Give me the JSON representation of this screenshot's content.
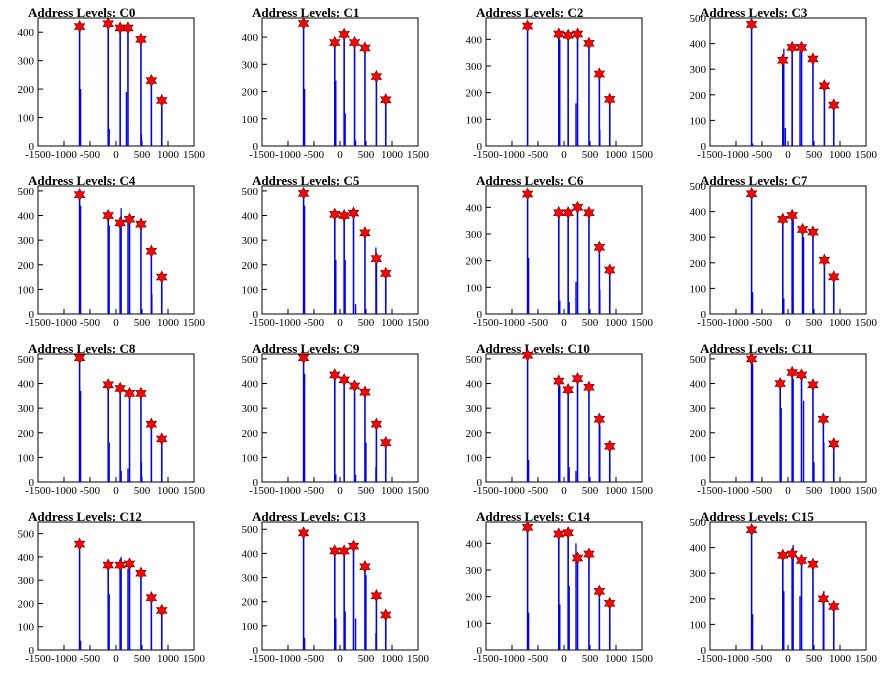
{
  "xticks": [
    -1500,
    -1000,
    -500,
    0,
    500,
    1000,
    1500
  ],
  "xtick_labels": [
    "-1500",
    "-1000",
    "-500",
    "0",
    "500",
    "1000",
    "1500"
  ],
  "colors": {
    "peak_line": "#0000ff",
    "marker_fill": "#ff0000",
    "marker_edge": "#660000",
    "axis": "#000000"
  },
  "chart_data": [
    {
      "type": "bar",
      "title": "Address Levels: C0",
      "xlim": [
        -1500,
        1500
      ],
      "ylim": [
        0,
        450
      ],
      "yticks": [
        0,
        100,
        200,
        300,
        400
      ],
      "ytick_labels": [
        "0",
        "100",
        "200",
        "300",
        "400"
      ],
      "peaks": [
        {
          "x": -700,
          "y": 420
        },
        {
          "x": -150,
          "y": 430
        },
        {
          "x": 80,
          "y": 415
        },
        {
          "x": 230,
          "y": 415
        },
        {
          "x": 480,
          "y": 375
        },
        {
          "x": 680,
          "y": 230
        },
        {
          "x": 880,
          "y": 160
        }
      ],
      "minor_bars": [
        {
          "x": -680,
          "y": 200
        },
        {
          "x": -130,
          "y": 60
        },
        {
          "x": 200,
          "y": 190
        },
        {
          "x": 490,
          "y": 40
        }
      ]
    },
    {
      "type": "bar",
      "title": "Address Levels: C1",
      "xlim": [
        -1500,
        1500
      ],
      "ylim": [
        0,
        470
      ],
      "yticks": [
        0,
        100,
        200,
        300,
        400
      ],
      "ytick_labels": [
        "0",
        "100",
        "200",
        "300",
        "400"
      ],
      "peaks": [
        {
          "x": -700,
          "y": 450
        },
        {
          "x": -100,
          "y": 380
        },
        {
          "x": 80,
          "y": 410
        },
        {
          "x": 280,
          "y": 380
        },
        {
          "x": 480,
          "y": 360
        },
        {
          "x": 700,
          "y": 255
        },
        {
          "x": 880,
          "y": 170
        }
      ],
      "minor_bars": [
        {
          "x": -680,
          "y": 210
        },
        {
          "x": -80,
          "y": 240
        },
        {
          "x": 100,
          "y": 120
        },
        {
          "x": 300,
          "y": 20
        }
      ]
    },
    {
      "type": "bar",
      "title": "Address Levels: C2",
      "xlim": [
        -1500,
        1500
      ],
      "ylim": [
        0,
        480
      ],
      "yticks": [
        0,
        100,
        200,
        300,
        400
      ],
      "ytick_labels": [
        "0",
        "100",
        "200",
        "300",
        "400"
      ],
      "peaks": [
        {
          "x": -700,
          "y": 450
        },
        {
          "x": -100,
          "y": 420
        },
        {
          "x": 80,
          "y": 415
        },
        {
          "x": 260,
          "y": 420
        },
        {
          "x": 480,
          "y": 385
        },
        {
          "x": 680,
          "y": 270
        },
        {
          "x": 880,
          "y": 175
        }
      ],
      "minor_bars": [
        {
          "x": -80,
          "y": 400
        },
        {
          "x": 230,
          "y": 160
        },
        {
          "x": 690,
          "y": 60
        }
      ]
    },
    {
      "type": "bar",
      "title": "Address Levels: C3",
      "xlim": [
        -1500,
        1500
      ],
      "ylim": [
        0,
        500
      ],
      "yticks": [
        0,
        100,
        200,
        300,
        400,
        500
      ],
      "ytick_labels": [
        "0",
        "100",
        "200",
        "300",
        "400",
        "500"
      ],
      "peaks": [
        {
          "x": -700,
          "y": 475
        },
        {
          "x": -100,
          "y": 335
        },
        {
          "x": 80,
          "y": 385
        },
        {
          "x": 260,
          "y": 385
        },
        {
          "x": 480,
          "y": 340
        },
        {
          "x": 700,
          "y": 235
        },
        {
          "x": 880,
          "y": 160
        }
      ],
      "minor_bars": [
        {
          "x": -680,
          "y": 10
        },
        {
          "x": -80,
          "y": 380
        },
        {
          "x": -50,
          "y": 70
        },
        {
          "x": 230,
          "y": 370
        }
      ]
    },
    {
      "type": "bar",
      "title": "Address Levels: C4",
      "xlim": [
        -1500,
        1500
      ],
      "ylim": [
        0,
        520
      ],
      "yticks": [
        0,
        100,
        200,
        300,
        400,
        500
      ],
      "ytick_labels": [
        "0",
        "100",
        "200",
        "300",
        "400",
        "500"
      ],
      "peaks": [
        {
          "x": -700,
          "y": 485
        },
        {
          "x": -150,
          "y": 400
        },
        {
          "x": 80,
          "y": 370
        },
        {
          "x": 260,
          "y": 385
        },
        {
          "x": 480,
          "y": 365
        },
        {
          "x": 680,
          "y": 255
        },
        {
          "x": 880,
          "y": 150
        }
      ],
      "minor_bars": [
        {
          "x": -680,
          "y": 440
        },
        {
          "x": -130,
          "y": 360
        },
        {
          "x": 100,
          "y": 430
        },
        {
          "x": 230,
          "y": 395
        },
        {
          "x": 690,
          "y": 80
        }
      ]
    },
    {
      "type": "bar",
      "title": "Address Levels: C5",
      "xlim": [
        -1500,
        1500
      ],
      "ylim": [
        0,
        520
      ],
      "yticks": [
        0,
        100,
        200,
        300,
        400,
        500
      ],
      "ytick_labels": [
        "0",
        "100",
        "200",
        "300",
        "400",
        "500"
      ],
      "peaks": [
        {
          "x": -700,
          "y": 490
        },
        {
          "x": -100,
          "y": 405
        },
        {
          "x": 80,
          "y": 400
        },
        {
          "x": 260,
          "y": 410
        },
        {
          "x": 480,
          "y": 330
        },
        {
          "x": 700,
          "y": 225
        },
        {
          "x": 880,
          "y": 165
        }
      ],
      "minor_bars": [
        {
          "x": -680,
          "y": 440
        },
        {
          "x": -80,
          "y": 220
        },
        {
          "x": 100,
          "y": 220
        },
        {
          "x": 300,
          "y": 40
        },
        {
          "x": 690,
          "y": 270
        }
      ]
    },
    {
      "type": "bar",
      "title": "Address Levels: C6",
      "xlim": [
        -1500,
        1500
      ],
      "ylim": [
        0,
        480
      ],
      "yticks": [
        0,
        100,
        200,
        300,
        400
      ],
      "ytick_labels": [
        "0",
        "100",
        "200",
        "300",
        "400"
      ],
      "peaks": [
        {
          "x": -700,
          "y": 450
        },
        {
          "x": -100,
          "y": 380
        },
        {
          "x": 80,
          "y": 380
        },
        {
          "x": 260,
          "y": 400
        },
        {
          "x": 480,
          "y": 380
        },
        {
          "x": 680,
          "y": 250
        },
        {
          "x": 880,
          "y": 165
        }
      ],
      "minor_bars": [
        {
          "x": -680,
          "y": 210
        },
        {
          "x": -80,
          "y": 50
        },
        {
          "x": 100,
          "y": 45
        },
        {
          "x": 230,
          "y": 120
        },
        {
          "x": 690,
          "y": 90
        }
      ]
    },
    {
      "type": "bar",
      "title": "Address Levels: C7",
      "xlim": [
        -1500,
        1500
      ],
      "ylim": [
        0,
        500
      ],
      "yticks": [
        0,
        100,
        200,
        300,
        400,
        500
      ],
      "ytick_labels": [
        "0",
        "100",
        "200",
        "300",
        "400",
        "500"
      ],
      "peaks": [
        {
          "x": -700,
          "y": 470
        },
        {
          "x": -100,
          "y": 370
        },
        {
          "x": 80,
          "y": 385
        },
        {
          "x": 280,
          "y": 330
        },
        {
          "x": 480,
          "y": 320
        },
        {
          "x": 700,
          "y": 210
        },
        {
          "x": 880,
          "y": 145
        }
      ],
      "minor_bars": [
        {
          "x": -680,
          "y": 85
        },
        {
          "x": -80,
          "y": 60
        },
        {
          "x": 100,
          "y": 370
        },
        {
          "x": 300,
          "y": 300
        }
      ]
    },
    {
      "type": "bar",
      "title": "Address Levels: C8",
      "xlim": [
        -1500,
        1500
      ],
      "ylim": [
        0,
        520
      ],
      "yticks": [
        0,
        100,
        200,
        300,
        400,
        500
      ],
      "ytick_labels": [
        "0",
        "100",
        "200",
        "300",
        "400",
        "500"
      ],
      "peaks": [
        {
          "x": -700,
          "y": 505
        },
        {
          "x": -150,
          "y": 395
        },
        {
          "x": 80,
          "y": 380
        },
        {
          "x": 260,
          "y": 360
        },
        {
          "x": 480,
          "y": 360
        },
        {
          "x": 680,
          "y": 235
        },
        {
          "x": 880,
          "y": 175
        }
      ],
      "minor_bars": [
        {
          "x": -680,
          "y": 370
        },
        {
          "x": -130,
          "y": 160
        },
        {
          "x": 100,
          "y": 45
        },
        {
          "x": 230,
          "y": 55
        },
        {
          "x": 490,
          "y": 80
        }
      ]
    },
    {
      "type": "bar",
      "title": "Address Levels: C9",
      "xlim": [
        -1500,
        1500
      ],
      "ylim": [
        0,
        520
      ],
      "yticks": [
        0,
        100,
        200,
        300,
        400,
        500
      ],
      "ytick_labels": [
        "0",
        "100",
        "200",
        "300",
        "400",
        "500"
      ],
      "peaks": [
        {
          "x": -700,
          "y": 505
        },
        {
          "x": -100,
          "y": 435
        },
        {
          "x": 80,
          "y": 415
        },
        {
          "x": 280,
          "y": 390
        },
        {
          "x": 480,
          "y": 365
        },
        {
          "x": 700,
          "y": 235
        },
        {
          "x": 880,
          "y": 160
        }
      ],
      "minor_bars": [
        {
          "x": -680,
          "y": 440
        },
        {
          "x": -80,
          "y": 30
        },
        {
          "x": 300,
          "y": 30
        },
        {
          "x": 500,
          "y": 160
        },
        {
          "x": 690,
          "y": 60
        }
      ]
    },
    {
      "type": "bar",
      "title": "Address Levels: C10",
      "xlim": [
        -1500,
        1500
      ],
      "ylim": [
        0,
        520
      ],
      "yticks": [
        0,
        100,
        200,
        300,
        400,
        500
      ],
      "ytick_labels": [
        "0",
        "100",
        "200",
        "300",
        "400",
        "500"
      ],
      "peaks": [
        {
          "x": -700,
          "y": 515
        },
        {
          "x": -100,
          "y": 410
        },
        {
          "x": 80,
          "y": 375
        },
        {
          "x": 260,
          "y": 420
        },
        {
          "x": 480,
          "y": 385
        },
        {
          "x": 680,
          "y": 255
        },
        {
          "x": 880,
          "y": 145
        }
      ],
      "minor_bars": [
        {
          "x": -680,
          "y": 90
        },
        {
          "x": -80,
          "y": 390
        },
        {
          "x": 100,
          "y": 60
        },
        {
          "x": 230,
          "y": 45
        },
        {
          "x": 690,
          "y": 230
        }
      ]
    },
    {
      "type": "bar",
      "title": "Address Levels: C11",
      "xlim": [
        -1500,
        1500
      ],
      "ylim": [
        0,
        520
      ],
      "yticks": [
        0,
        100,
        200,
        300,
        400,
        500
      ],
      "ytick_labels": [
        "0",
        "100",
        "200",
        "300",
        "400",
        "500"
      ],
      "peaks": [
        {
          "x": -700,
          "y": 500
        },
        {
          "x": -150,
          "y": 400
        },
        {
          "x": 80,
          "y": 445
        },
        {
          "x": 260,
          "y": 435
        },
        {
          "x": 480,
          "y": 395
        },
        {
          "x": 680,
          "y": 255
        },
        {
          "x": 880,
          "y": 155
        }
      ],
      "minor_bars": [
        {
          "x": -680,
          "y": 480
        },
        {
          "x": -130,
          "y": 300
        },
        {
          "x": 100,
          "y": 420
        },
        {
          "x": 300,
          "y": 330
        },
        {
          "x": 500,
          "y": 80
        },
        {
          "x": 690,
          "y": 160
        }
      ]
    },
    {
      "type": "bar",
      "title": "Address Levels: C12",
      "xlim": [
        -1500,
        1500
      ],
      "ylim": [
        0,
        550
      ],
      "yticks": [
        0,
        100,
        200,
        300,
        400,
        500
      ],
      "ytick_labels": [
        "0",
        "100",
        "200",
        "300",
        "400",
        "500"
      ],
      "peaks": [
        {
          "x": -700,
          "y": 455
        },
        {
          "x": -150,
          "y": 365
        },
        {
          "x": 80,
          "y": 365
        },
        {
          "x": 260,
          "y": 370
        },
        {
          "x": 480,
          "y": 330
        },
        {
          "x": 680,
          "y": 225
        },
        {
          "x": 880,
          "y": 170
        }
      ],
      "minor_bars": [
        {
          "x": -680,
          "y": 40
        },
        {
          "x": -130,
          "y": 240
        },
        {
          "x": 100,
          "y": 400
        },
        {
          "x": 230,
          "y": 350
        }
      ]
    },
    {
      "type": "bar",
      "title": "Address Levels: C13",
      "xlim": [
        -1500,
        1500
      ],
      "ylim": [
        0,
        530
      ],
      "yticks": [
        0,
        100,
        200,
        300,
        400,
        500
      ],
      "ytick_labels": [
        "0",
        "100",
        "200",
        "300",
        "400",
        "500"
      ],
      "peaks": [
        {
          "x": -700,
          "y": 485
        },
        {
          "x": -100,
          "y": 410
        },
        {
          "x": 80,
          "y": 410
        },
        {
          "x": 260,
          "y": 430
        },
        {
          "x": 480,
          "y": 345
        },
        {
          "x": 700,
          "y": 225
        },
        {
          "x": 880,
          "y": 145
        }
      ],
      "minor_bars": [
        {
          "x": -680,
          "y": 50
        },
        {
          "x": -80,
          "y": 130
        },
        {
          "x": 100,
          "y": 160
        },
        {
          "x": 300,
          "y": 130
        },
        {
          "x": 500,
          "y": 310
        },
        {
          "x": 690,
          "y": 70
        }
      ]
    },
    {
      "type": "bar",
      "title": "Address Levels: C14",
      "xlim": [
        -1500,
        1500
      ],
      "ylim": [
        0,
        480
      ],
      "yticks": [
        0,
        100,
        200,
        300,
        400
      ],
      "ytick_labels": [
        "0",
        "100",
        "200",
        "300",
        "400"
      ],
      "peaks": [
        {
          "x": -700,
          "y": 460
        },
        {
          "x": -100,
          "y": 435
        },
        {
          "x": 80,
          "y": 440
        },
        {
          "x": 260,
          "y": 345
        },
        {
          "x": 480,
          "y": 360
        },
        {
          "x": 680,
          "y": 220
        },
        {
          "x": 880,
          "y": 175
        }
      ],
      "minor_bars": [
        {
          "x": -680,
          "y": 140
        },
        {
          "x": -80,
          "y": 170
        },
        {
          "x": 100,
          "y": 240
        },
        {
          "x": 230,
          "y": 400
        }
      ]
    },
    {
      "type": "bar",
      "title": "Address Levels: C15",
      "xlim": [
        -1500,
        1500
      ],
      "ylim": [
        0,
        500
      ],
      "yticks": [
        0,
        100,
        200,
        300,
        400,
        500
      ],
      "ytick_labels": [
        "0",
        "100",
        "200",
        "300",
        "400",
        "500"
      ],
      "peaks": [
        {
          "x": -700,
          "y": 470
        },
        {
          "x": -100,
          "y": 370
        },
        {
          "x": 80,
          "y": 375
        },
        {
          "x": 260,
          "y": 350
        },
        {
          "x": 480,
          "y": 335
        },
        {
          "x": 680,
          "y": 200
        },
        {
          "x": 880,
          "y": 170
        }
      ],
      "minor_bars": [
        {
          "x": -680,
          "y": 140
        },
        {
          "x": -80,
          "y": 230
        },
        {
          "x": 100,
          "y": 410
        },
        {
          "x": 230,
          "y": 210
        },
        {
          "x": 690,
          "y": 230
        }
      ]
    }
  ]
}
